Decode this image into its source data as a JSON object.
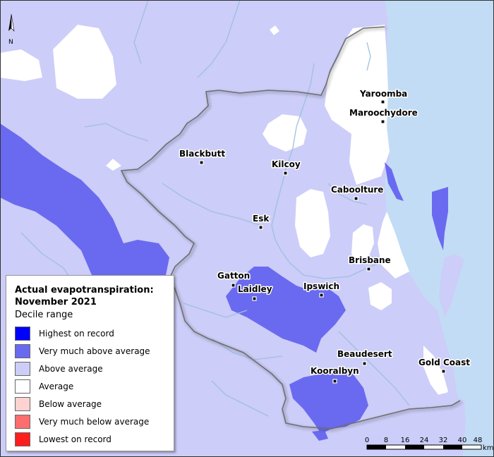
{
  "legend": {
    "title": "Actual evapotranspiration: November 2021",
    "subtitle": "Decile range",
    "items": [
      {
        "label": "Highest on record",
        "color": "#0000ff"
      },
      {
        "label": "Very much above average",
        "color": "#6a6af0"
      },
      {
        "label": "Above average",
        "color": "#cccdf8"
      },
      {
        "label": "Average",
        "color": "#ffffff"
      },
      {
        "label": "Below average",
        "color": "#ffd2d2"
      },
      {
        "label": "Very much below average",
        "color": "#ff6e6e"
      },
      {
        "label": "Lowest on record",
        "color": "#ff1e1e"
      }
    ]
  },
  "places": [
    {
      "name": "Yaroomba"
    },
    {
      "name": "Maroochydore"
    },
    {
      "name": "Blackbutt"
    },
    {
      "name": "Kilcoy"
    },
    {
      "name": "Caboolture"
    },
    {
      "name": "Esk"
    },
    {
      "name": "Brisbane"
    },
    {
      "name": "Gatton"
    },
    {
      "name": "Laidley"
    },
    {
      "name": "Ipswich"
    },
    {
      "name": "Beaudesert"
    },
    {
      "name": "Gold Coast"
    },
    {
      "name": "Kooralbyn"
    }
  ],
  "scale_bar": {
    "ticks": [
      "0",
      "8",
      "16",
      "24",
      "32",
      "40",
      "48"
    ],
    "unit": "km"
  },
  "north_arrow": {
    "label": "N"
  },
  "colors": {
    "ocean": "#c3dcf5",
    "river": "#9ec0e0",
    "region_border": "#6e6e6e"
  }
}
